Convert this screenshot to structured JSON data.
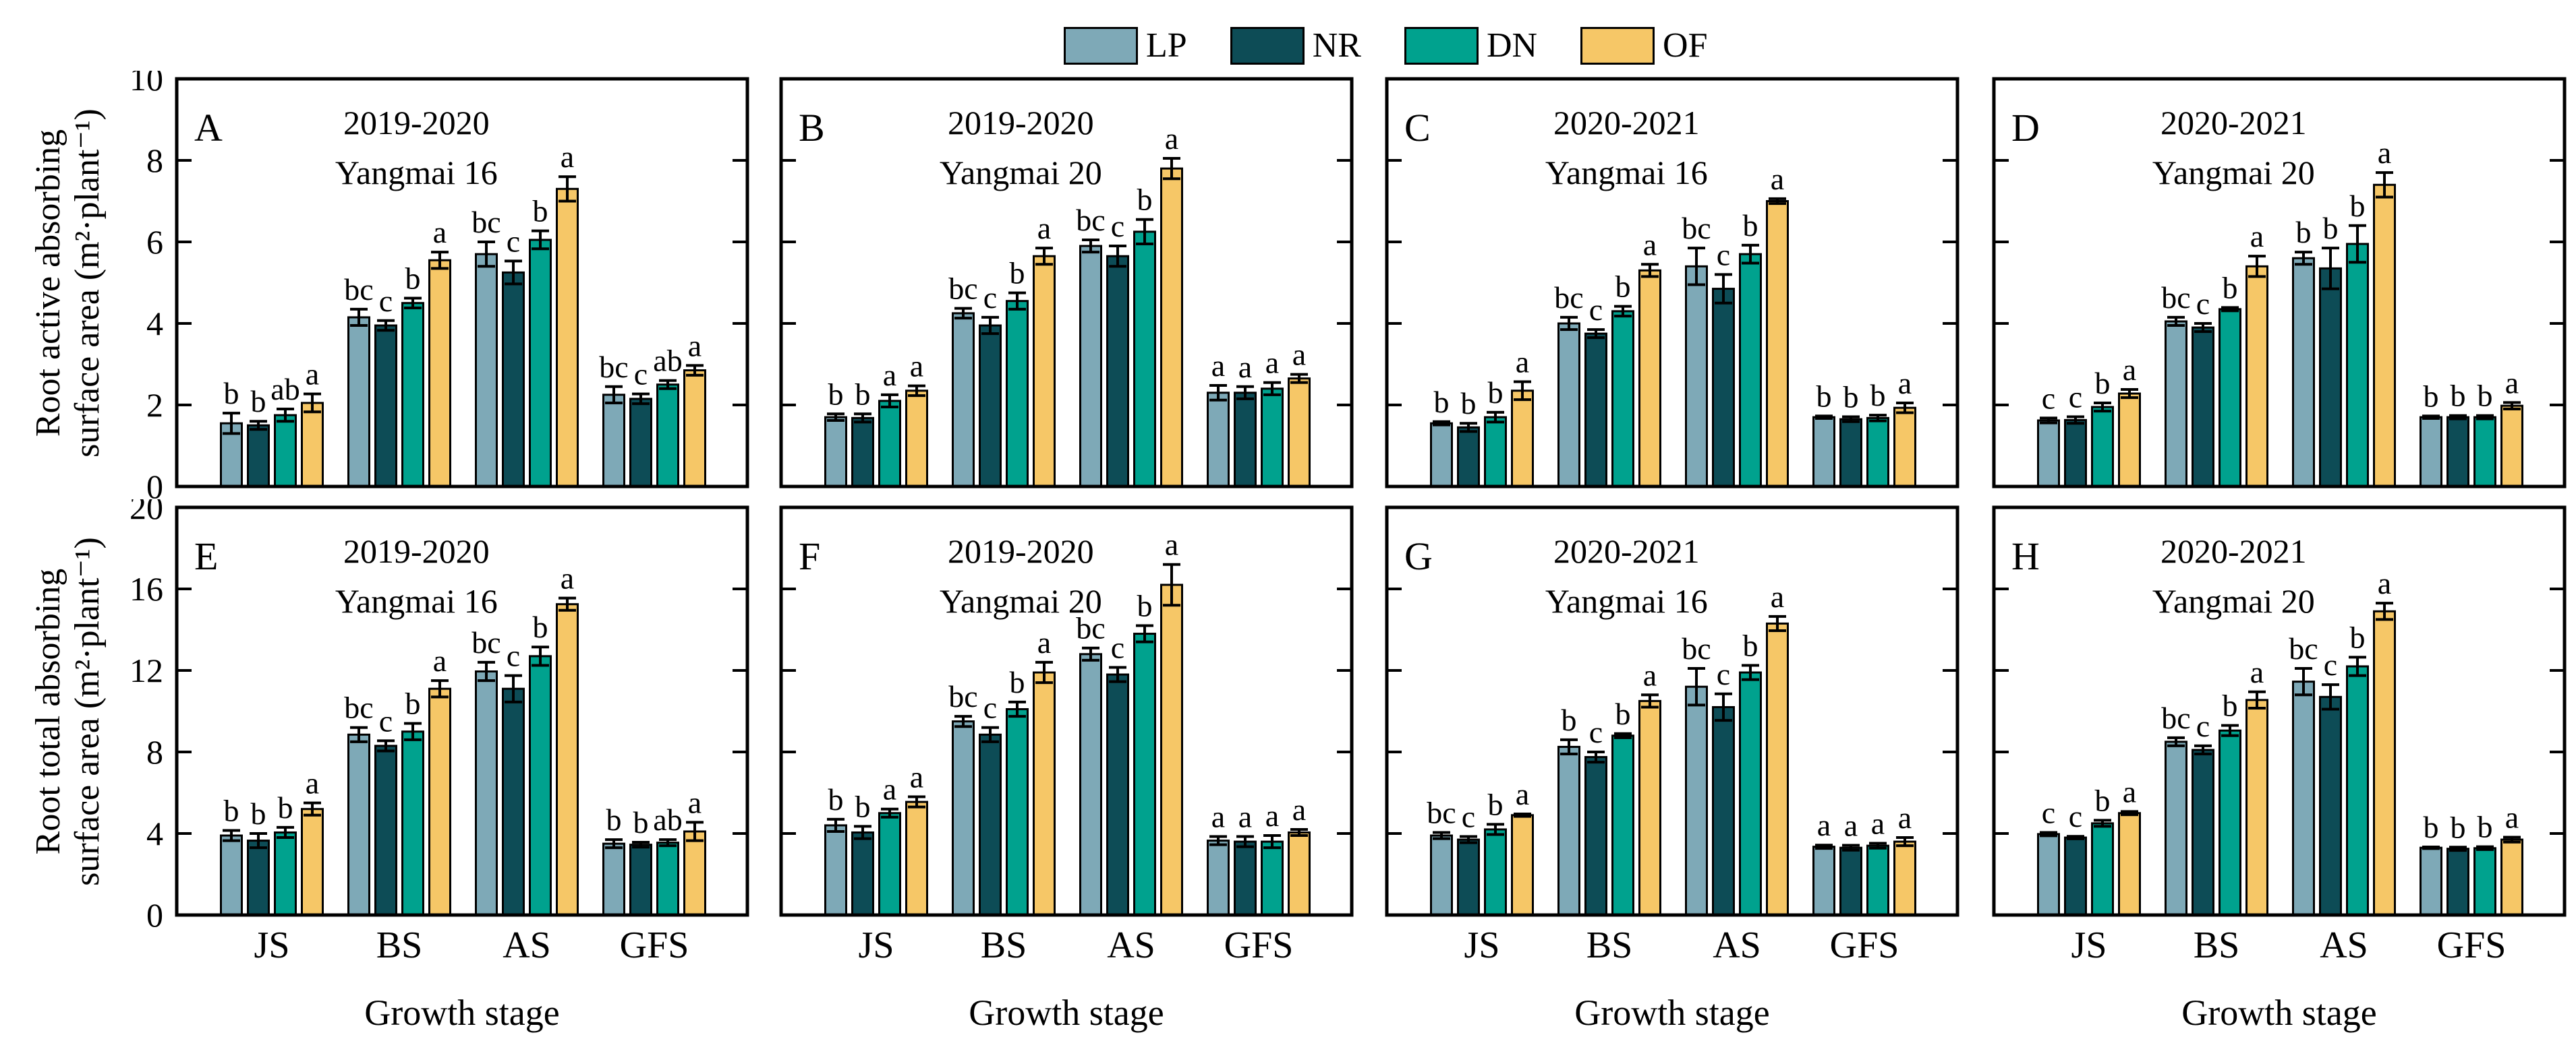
{
  "legend": {
    "items": [
      {
        "label": "LP",
        "color": "#7ea9b7"
      },
      {
        "label": "NR",
        "color": "#0d4c56"
      },
      {
        "label": "DN",
        "color": "#00a28e"
      },
      {
        "label": "OF",
        "color": "#f6c767"
      }
    ]
  },
  "axes": {
    "row1_ylabel_line1": "Root active absorbing",
    "row1_ylabel_line2": "surface area (m²·plant⁻¹)",
    "row2_ylabel_line1": "Root total absorbing",
    "row2_ylabel_line2": "surface area (m²·plant⁻¹)",
    "xlabel": "Growth stage",
    "categories": [
      "JS",
      "BS",
      "AS",
      "GFS"
    ]
  },
  "chart_data": [
    {
      "type": "bar",
      "panel": "A",
      "title_line1": "2019-2020",
      "title_line2": "Yangmai 16",
      "row": 1,
      "col": 1,
      "ylim": [
        0,
        10
      ],
      "yticks": [
        0,
        2,
        4,
        6,
        8,
        10
      ],
      "categories": [
        "JS",
        "BS",
        "AS",
        "GFS"
      ],
      "series": [
        {
          "name": "LP",
          "values": [
            1.55,
            4.15,
            5.7,
            2.25
          ],
          "errors": [
            0.25,
            0.2,
            0.3,
            0.2
          ],
          "letters": [
            "b",
            "bc",
            "bc",
            "bc"
          ]
        },
        {
          "name": "NR",
          "values": [
            1.5,
            3.95,
            5.25,
            2.15
          ],
          "errors": [
            0.1,
            0.12,
            0.28,
            0.12
          ],
          "letters": [
            "b",
            "c",
            "c",
            "c"
          ]
        },
        {
          "name": "DN",
          "values": [
            1.75,
            4.5,
            6.05,
            2.5
          ],
          "errors": [
            0.15,
            0.12,
            0.22,
            0.1
          ],
          "letters": [
            "ab",
            "b",
            "b",
            "ab"
          ]
        },
        {
          "name": "OF",
          "values": [
            2.05,
            5.55,
            7.3,
            2.85
          ],
          "errors": [
            0.22,
            0.2,
            0.3,
            0.12
          ],
          "letters": [
            "a",
            "a",
            "a",
            "a"
          ]
        }
      ]
    },
    {
      "type": "bar",
      "panel": "B",
      "title_line1": "2019-2020",
      "title_line2": "Yangmai 20",
      "row": 1,
      "col": 2,
      "ylim": [
        0,
        10
      ],
      "yticks": [
        0,
        2,
        4,
        6,
        8,
        10
      ],
      "categories": [
        "JS",
        "BS",
        "AS",
        "GFS"
      ],
      "series": [
        {
          "name": "LP",
          "values": [
            1.7,
            4.25,
            5.9,
            2.3
          ],
          "errors": [
            0.08,
            0.12,
            0.15,
            0.18
          ],
          "letters": [
            "b",
            "bc",
            "bc",
            "a"
          ]
        },
        {
          "name": "NR",
          "values": [
            1.68,
            3.95,
            5.65,
            2.3
          ],
          "errors": [
            0.1,
            0.2,
            0.25,
            0.15
          ],
          "letters": [
            "b",
            "c",
            "c",
            "a"
          ]
        },
        {
          "name": "DN",
          "values": [
            2.1,
            4.55,
            6.25,
            2.4
          ],
          "errors": [
            0.15,
            0.2,
            0.3,
            0.15
          ],
          "letters": [
            "a",
            "b",
            "b",
            "a"
          ]
        },
        {
          "name": "OF",
          "values": [
            2.35,
            5.65,
            7.8,
            2.65
          ],
          "errors": [
            0.12,
            0.2,
            0.25,
            0.1
          ],
          "letters": [
            "a",
            "a",
            "a",
            "a"
          ]
        }
      ]
    },
    {
      "type": "bar",
      "panel": "C",
      "title_line1": "2020-2021",
      "title_line2": "Yangmai 16",
      "row": 1,
      "col": 3,
      "ylim": [
        0,
        10
      ],
      "yticks": [
        0,
        2,
        4,
        6,
        8,
        10
      ],
      "categories": [
        "JS",
        "BS",
        "AS",
        "GFS"
      ],
      "series": [
        {
          "name": "LP",
          "values": [
            1.55,
            4.0,
            5.4,
            1.7
          ],
          "errors": [
            0.04,
            0.15,
            0.45,
            0.03
          ],
          "letters": [
            "b",
            "bc",
            "bc",
            "b"
          ]
        },
        {
          "name": "NR",
          "values": [
            1.45,
            3.75,
            4.85,
            1.65
          ],
          "errors": [
            0.1,
            0.1,
            0.35,
            0.06
          ],
          "letters": [
            "b",
            "c",
            "c",
            "b"
          ]
        },
        {
          "name": "DN",
          "values": [
            1.7,
            4.3,
            5.7,
            1.68
          ],
          "errors": [
            0.12,
            0.12,
            0.22,
            0.07
          ],
          "letters": [
            "b",
            "b",
            "b",
            "b"
          ]
        },
        {
          "name": "OF",
          "values": [
            2.35,
            5.3,
            7.0,
            1.93
          ],
          "errors": [
            0.22,
            0.15,
            0.06,
            0.12
          ],
          "letters": [
            "a",
            "a",
            "a",
            "a"
          ]
        }
      ]
    },
    {
      "type": "bar",
      "panel": "D",
      "title_line1": "2020-2021",
      "title_line2": "Yangmai 20",
      "row": 1,
      "col": 4,
      "ylim": [
        0,
        10
      ],
      "yticks": [
        0,
        2,
        4,
        6,
        8,
        10
      ],
      "categories": [
        "JS",
        "BS",
        "AS",
        "GFS"
      ],
      "series": [
        {
          "name": "LP",
          "values": [
            1.62,
            4.05,
            5.6,
            1.7
          ],
          "errors": [
            0.06,
            0.1,
            0.15,
            0.03
          ],
          "letters": [
            "c",
            "bc",
            "b",
            "b"
          ]
        },
        {
          "name": "NR",
          "values": [
            1.63,
            3.9,
            5.35,
            1.7
          ],
          "errors": [
            0.08,
            0.1,
            0.5,
            0.04
          ],
          "letters": [
            "c",
            "c",
            "b",
            "b"
          ]
        },
        {
          "name": "DN",
          "values": [
            1.95,
            4.35,
            5.95,
            1.7
          ],
          "errors": [
            0.1,
            0.04,
            0.45,
            0.04
          ],
          "letters": [
            "b",
            "b",
            "b",
            "b"
          ]
        },
        {
          "name": "OF",
          "values": [
            2.28,
            5.4,
            7.4,
            1.98
          ],
          "errors": [
            0.1,
            0.25,
            0.3,
            0.08
          ],
          "letters": [
            "a",
            "a",
            "a",
            "a"
          ]
        }
      ]
    },
    {
      "type": "bar",
      "panel": "E",
      "title_line1": "2019-2020",
      "title_line2": "Yangmai 16",
      "row": 2,
      "col": 1,
      "ylim": [
        0,
        20
      ],
      "yticks": [
        0,
        4,
        8,
        12,
        16,
        20
      ],
      "categories": [
        "JS",
        "BS",
        "AS",
        "GFS"
      ],
      "series": [
        {
          "name": "LP",
          "values": [
            3.9,
            8.85,
            11.95,
            3.5
          ],
          "errors": [
            0.25,
            0.35,
            0.45,
            0.2
          ],
          "letters": [
            "b",
            "bc",
            "bc",
            "b"
          ]
        },
        {
          "name": "NR",
          "values": [
            3.65,
            8.3,
            11.1,
            3.45
          ],
          "errors": [
            0.35,
            0.25,
            0.65,
            0.12
          ],
          "letters": [
            "b",
            "c",
            "c",
            "b"
          ]
        },
        {
          "name": "DN",
          "values": [
            4.05,
            9.0,
            12.7,
            3.55
          ],
          "errors": [
            0.25,
            0.4,
            0.45,
            0.15
          ],
          "letters": [
            "b",
            "b",
            "b",
            "ab"
          ]
        },
        {
          "name": "OF",
          "values": [
            5.2,
            11.1,
            15.25,
            4.1
          ],
          "errors": [
            0.3,
            0.4,
            0.3,
            0.45
          ],
          "letters": [
            "a",
            "a",
            "a",
            "a"
          ]
        }
      ]
    },
    {
      "type": "bar",
      "panel": "F",
      "title_line1": "2019-2020",
      "title_line2": "Yangmai 20",
      "row": 2,
      "col": 2,
      "ylim": [
        0,
        20
      ],
      "yticks": [
        0,
        4,
        8,
        12,
        16,
        20
      ],
      "categories": [
        "JS",
        "BS",
        "AS",
        "GFS"
      ],
      "series": [
        {
          "name": "LP",
          "values": [
            4.4,
            9.5,
            12.8,
            3.65
          ],
          "errors": [
            0.3,
            0.25,
            0.3,
            0.2
          ],
          "letters": [
            "b",
            "bc",
            "bc",
            "a"
          ]
        },
        {
          "name": "NR",
          "values": [
            4.05,
            8.85,
            11.8,
            3.6
          ],
          "errors": [
            0.3,
            0.35,
            0.35,
            0.25
          ],
          "letters": [
            "b",
            "c",
            "c",
            "a"
          ]
        },
        {
          "name": "DN",
          "values": [
            5.0,
            10.1,
            13.8,
            3.6
          ],
          "errors": [
            0.2,
            0.35,
            0.4,
            0.3
          ],
          "letters": [
            "a",
            "b",
            "b",
            "a"
          ]
        },
        {
          "name": "OF",
          "values": [
            5.55,
            11.9,
            16.2,
            4.05
          ],
          "errors": [
            0.25,
            0.5,
            1.0,
            0.15
          ],
          "letters": [
            "a",
            "a",
            "a",
            "a"
          ]
        }
      ]
    },
    {
      "type": "bar",
      "panel": "G",
      "title_line1": "2020-2021",
      "title_line2": "Yangmai 16",
      "row": 2,
      "col": 3,
      "ylim": [
        0,
        20
      ],
      "yticks": [
        0,
        4,
        8,
        12,
        16,
        20
      ],
      "categories": [
        "JS",
        "BS",
        "AS",
        "GFS"
      ],
      "series": [
        {
          "name": "LP",
          "values": [
            3.9,
            8.25,
            11.2,
            3.35
          ],
          "errors": [
            0.15,
            0.35,
            0.9,
            0.08
          ],
          "letters": [
            "bc",
            "b",
            "bc",
            "a"
          ]
        },
        {
          "name": "NR",
          "values": [
            3.7,
            7.75,
            10.2,
            3.3
          ],
          "errors": [
            0.15,
            0.25,
            0.65,
            0.12
          ],
          "letters": [
            "c",
            "c",
            "c",
            "a"
          ]
        },
        {
          "name": "DN",
          "values": [
            4.2,
            8.8,
            11.9,
            3.4
          ],
          "errors": [
            0.25,
            0.1,
            0.35,
            0.12
          ],
          "letters": [
            "b",
            "b",
            "b",
            "a"
          ]
        },
        {
          "name": "OF",
          "values": [
            4.9,
            10.5,
            14.3,
            3.6
          ],
          "errors": [
            0.06,
            0.3,
            0.35,
            0.2
          ],
          "letters": [
            "a",
            "a",
            "a",
            "a"
          ]
        }
      ]
    },
    {
      "type": "bar",
      "panel": "H",
      "title_line1": "2020-2021",
      "title_line2": "Yangmai 20",
      "row": 2,
      "col": 4,
      "ylim": [
        0,
        20
      ],
      "yticks": [
        0,
        4,
        8,
        12,
        16,
        20
      ],
      "categories": [
        "JS",
        "BS",
        "AS",
        "GFS"
      ],
      "series": [
        {
          "name": "LP",
          "values": [
            3.97,
            8.5,
            11.45,
            3.3
          ],
          "errors": [
            0.08,
            0.2,
            0.65,
            0.04
          ],
          "letters": [
            "c",
            "bc",
            "bc",
            "b"
          ]
        },
        {
          "name": "NR",
          "values": [
            3.8,
            8.1,
            10.7,
            3.25
          ],
          "errors": [
            0.06,
            0.2,
            0.6,
            0.08
          ],
          "letters": [
            "c",
            "c",
            "c",
            "b"
          ]
        },
        {
          "name": "DN",
          "values": [
            4.5,
            9.05,
            12.2,
            3.28
          ],
          "errors": [
            0.15,
            0.25,
            0.45,
            0.07
          ],
          "letters": [
            "b",
            "b",
            "b",
            "b"
          ]
        },
        {
          "name": "OF",
          "values": [
            5.0,
            10.55,
            14.9,
            3.7
          ],
          "errors": [
            0.08,
            0.4,
            0.4,
            0.12
          ],
          "letters": [
            "a",
            "a",
            "a",
            "a"
          ]
        }
      ]
    }
  ]
}
